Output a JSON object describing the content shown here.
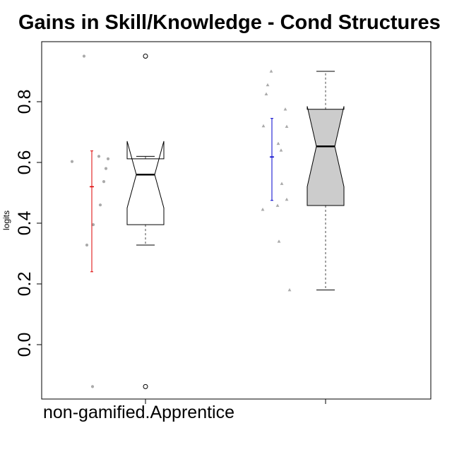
{
  "chart_data": {
    "type": "box",
    "title": "Gains in Skill/Knowledge - Cond Structures",
    "xlabel": "",
    "ylabel": "logits",
    "ylim": [
      -0.18,
      1.0
    ],
    "yticks": [
      0.0,
      0.2,
      0.4,
      0.6,
      0.8
    ],
    "ytick_labels": [
      "0.0",
      "0.2",
      "0.4",
      "0.6",
      "0.8"
    ],
    "grid": false,
    "categories": [
      "non-gamified.Apprentice",
      ""
    ],
    "groups": [
      {
        "category": "non-gamified.Apprentice",
        "box_color": "#ffffff",
        "notch_low": 0.45,
        "notch_high": 0.67,
        "q1": 0.395,
        "median": 0.56,
        "q3": 0.612,
        "whisker_low": 0.328,
        "whisker_high": 0.62,
        "outliers": [
          0.95,
          -0.138
        ],
        "mean": 0.52,
        "ci_low": 0.24,
        "ci_high": 0.638,
        "ci_color": "#dd0000",
        "points": [
          0.95,
          0.603,
          0.62,
          0.612,
          0.58,
          0.537,
          0.46,
          0.395,
          0.328,
          -0.138
        ]
      },
      {
        "category": "",
        "box_color": "#cccccc",
        "notch_low": 0.52,
        "notch_high": 0.785,
        "q1": 0.458,
        "median": 0.653,
        "q3": 0.775,
        "whisker_low": 0.18,
        "whisker_high": 0.9,
        "outliers": [],
        "mean": 0.618,
        "ci_low": 0.475,
        "ci_high": 0.745,
        "ci_color": "#0000cc",
        "points": [
          0.9,
          0.855,
          0.825,
          0.775,
          0.72,
          0.718,
          0.662,
          0.64,
          0.53,
          0.478,
          0.458,
          0.445,
          0.34,
          0.18
        ]
      }
    ]
  },
  "colors": {
    "points": "#aaaaaa",
    "box_border": "#000000",
    "whisker": "#666666"
  }
}
